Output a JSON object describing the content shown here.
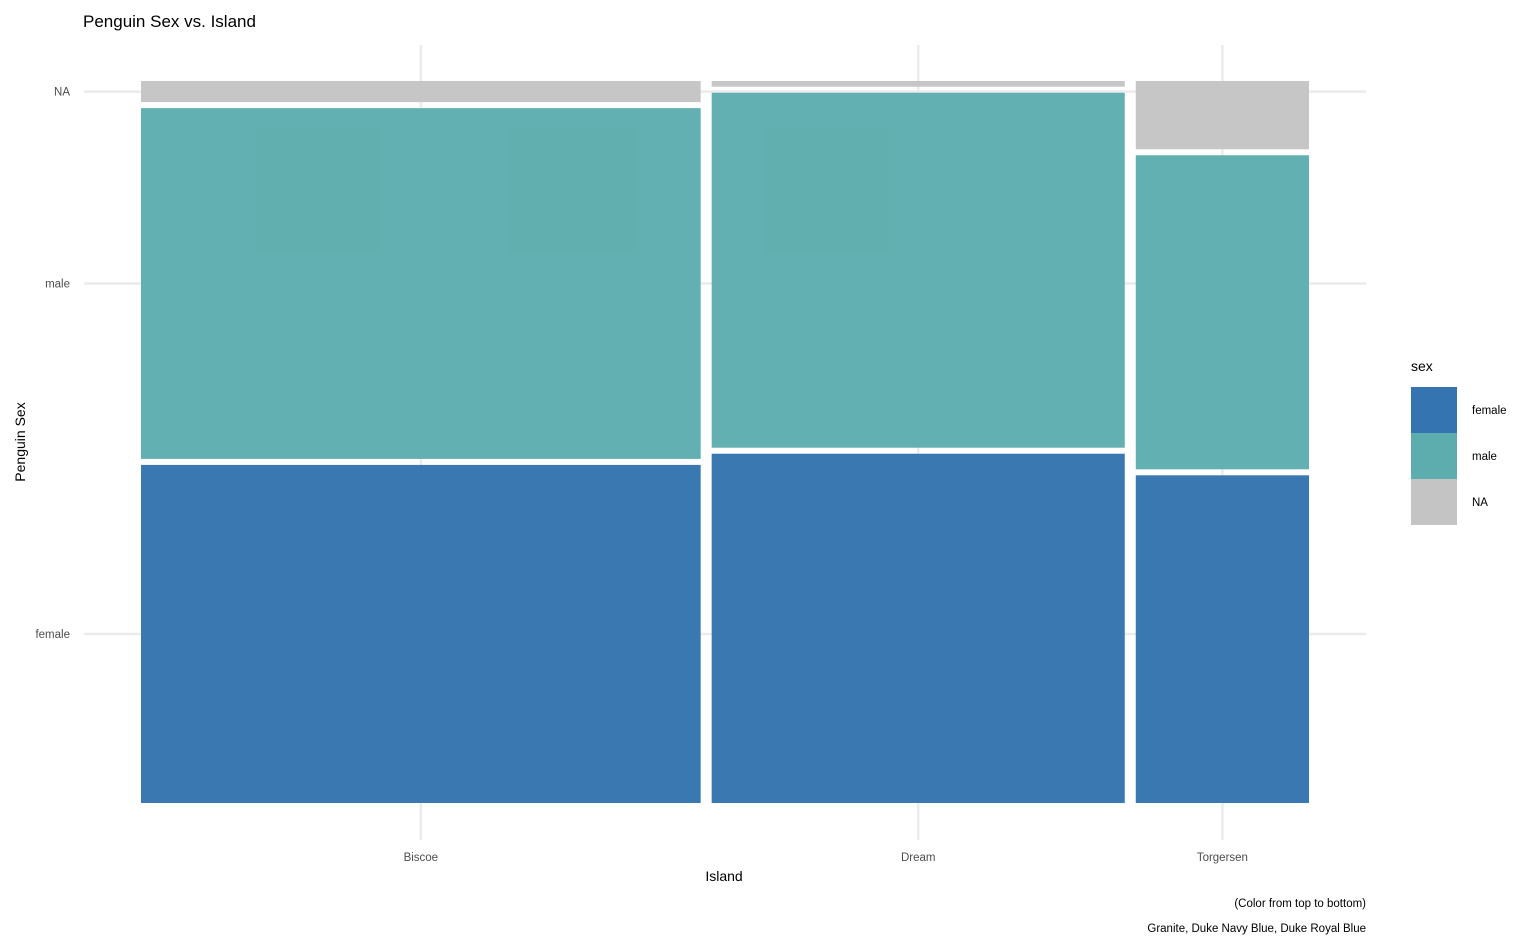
{
  "chart_data": {
    "type": "mosaic",
    "title": "Penguin Sex vs. Island",
    "xlabel": "Island",
    "ylabel": "Penguin Sex",
    "categories": [
      "Biscoe",
      "Dream",
      "Torgersen"
    ],
    "island_counts": [
      168,
      124,
      52
    ],
    "series": [
      {
        "name": "female",
        "color": "#3474b0",
        "values": [
          80,
          61,
          24
        ]
      },
      {
        "name": "male",
        "color": "#5dadae",
        "values": [
          83,
          62,
          23
        ]
      },
      {
        "name": "NA",
        "color": "#c4c4c4",
        "values": [
          5,
          1,
          5
        ]
      }
    ],
    "y_ticks": [
      "female",
      "male",
      "NA"
    ],
    "legend": {
      "title": "sex",
      "position": "right",
      "items": [
        "female",
        "male",
        "NA"
      ]
    },
    "caption": [
      "(Color from top to bottom)",
      "Granite, Duke Navy Blue, Duke Royal Blue"
    ],
    "grid": true
  }
}
